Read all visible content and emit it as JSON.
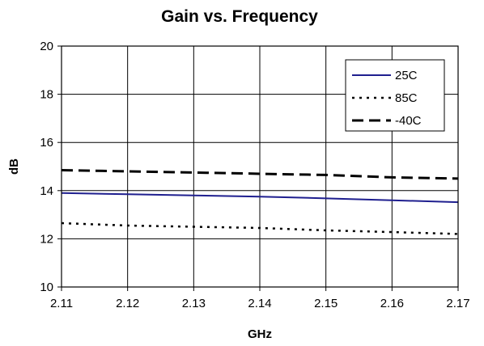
{
  "chart_data": {
    "type": "line",
    "title": "Gain vs. Frequency",
    "xlabel": "GHz",
    "ylabel": "dB",
    "xlim": [
      2.11,
      2.17
    ],
    "ylim": [
      10,
      20
    ],
    "grid": true,
    "legend_position": "top-right",
    "x_ticks": [
      "2.11",
      "2.12",
      "2.13",
      "2.14",
      "2.15",
      "2.16",
      "2.17"
    ],
    "y_ticks": [
      "10",
      "12",
      "14",
      "16",
      "18",
      "20"
    ],
    "x": [
      2.11,
      2.12,
      2.13,
      2.14,
      2.15,
      2.16,
      2.17
    ],
    "series": [
      {
        "name": "25C",
        "color": "#1f1f8f",
        "style": "solid",
        "values": [
          13.9,
          13.85,
          13.8,
          13.75,
          13.68,
          13.6,
          13.52
        ]
      },
      {
        "name": "85C",
        "color": "#000000",
        "style": "dotted",
        "values": [
          12.65,
          12.55,
          12.5,
          12.45,
          12.35,
          12.28,
          12.2
        ]
      },
      {
        "name": "-40C",
        "color": "#000000",
        "style": "dashed",
        "values": [
          14.85,
          14.8,
          14.75,
          14.7,
          14.65,
          14.55,
          14.5
        ]
      }
    ]
  }
}
